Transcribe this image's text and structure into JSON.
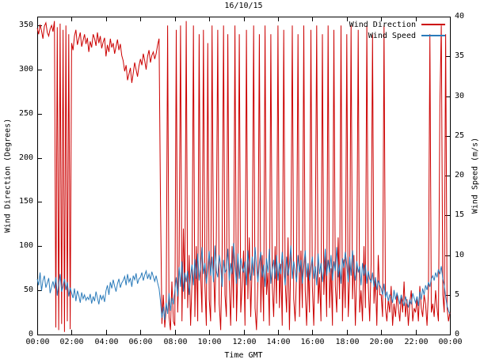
{
  "chart_data": {
    "type": "line",
    "title": "16/10/15",
    "xlabel": "Time GMT",
    "x_range_minutes": [
      0,
      1440
    ],
    "sample_interval_minutes": 5,
    "x_ticks": {
      "minutes": [
        0,
        120,
        240,
        360,
        480,
        600,
        720,
        840,
        960,
        1080,
        1200,
        1320,
        1440
      ],
      "labels": [
        "00:00",
        "02:00",
        "04:00",
        "06:00",
        "08:00",
        "10:00",
        "12:00",
        "14:00",
        "16:00",
        "18:00",
        "20:00",
        "22:00",
        "00:00"
      ]
    },
    "left_axis": {
      "label": "Wind Direction (Degrees)",
      "range": [
        0,
        360
      ],
      "ticks": [
        0,
        50,
        100,
        150,
        200,
        250,
        300,
        350
      ]
    },
    "right_axis": {
      "label": "Wind Speed (m/s)",
      "range": [
        0,
        40
      ],
      "ticks": [
        0,
        5,
        10,
        15,
        20,
        25,
        30,
        35,
        40
      ]
    },
    "grid": false,
    "legend_position": "top-right",
    "series": [
      {
        "name": "Wind Direction",
        "color": "#cc0000",
        "axis": "left",
        "values": [
          347,
          340,
          351,
          344,
          335,
          349,
          353,
          342,
          338,
          346,
          350,
          343,
          355,
          8,
          348,
          5,
          352,
          12,
          345,
          3,
          350,
          15,
          340,
          6,
          330,
          322,
          338,
          345,
          328,
          335,
          342,
          326,
          333,
          340,
          329,
          336,
          320,
          332,
          325,
          340,
          335,
          327,
          342,
          330,
          338,
          324,
          331,
          336,
          315,
          328,
          320,
          335,
          325,
          330,
          318,
          326,
          334,
          322,
          329,
          316,
          310,
          298,
          305,
          288,
          295,
          302,
          285,
          296,
          308,
          300,
          292,
          304,
          312,
          305,
          318,
          310,
          300,
          315,
          322,
          308,
          316,
          320,
          312,
          318,
          328,
          335,
          150,
          12,
          45,
          8,
          30,
          350,
          20,
          5,
          60,
          15,
          10,
          345,
          25,
          80,
          350,
          15,
          120,
          40,
          355,
          30,
          90,
          10,
          60,
          350,
          20,
          100,
          15,
          340,
          70,
          25,
          345,
          55,
          10,
          330,
          40,
          15,
          350,
          80,
          25,
          110,
          345,
          35,
          5,
          90,
          350,
          45,
          20,
          340,
          60,
          10,
          100,
          30,
          350,
          15,
          75,
          340,
          25,
          55,
          95,
          10,
          345,
          40,
          110,
          20,
          80,
          350,
          30,
          5,
          60,
          340,
          25,
          90,
          15,
          350,
          45,
          70,
          10,
          340,
          55,
          20,
          100,
          35,
          350,
          30,
          80,
          10,
          345,
          60,
          25,
          110,
          5,
          90,
          350,
          40,
          15,
          70,
          340,
          20,
          95,
          30,
          350,
          50,
          10,
          80,
          25,
          345,
          55,
          10,
          100,
          350,
          35,
          65,
          15,
          340,
          45,
          90,
          20,
          350,
          30,
          75,
          10,
          345,
          55,
          25,
          110,
          40,
          350,
          15,
          85,
          30,
          340,
          20,
          60,
          350,
          40,
          90,
          10,
          70,
          345,
          25,
          50,
          15,
          100,
          30,
          350,
          55,
          15,
          80,
          340,
          35,
          65,
          10,
          90,
          45,
          45,
          20,
          350,
          30,
          15,
          40,
          25,
          55,
          10,
          35,
          20,
          45,
          30,
          15,
          45,
          25,
          60,
          20,
          40,
          10,
          35,
          50,
          15,
          30,
          25,
          40,
          15,
          55,
          30,
          20,
          45,
          35,
          10,
          50,
          340,
          25,
          35,
          20,
          50,
          30,
          15,
          260,
          350,
          45,
          25,
          340,
          30,
          15,
          25
        ]
      },
      {
        "name": "Wind Speed",
        "color": "#2b7bba",
        "axis": "right",
        "values": [
          7.0,
          6.2,
          7.8,
          5.5,
          6.8,
          7.4,
          5.9,
          6.5,
          7.1,
          5.2,
          6.0,
          6.7,
          5.8,
          7.2,
          4.9,
          6.3,
          7.6,
          5.4,
          6.1,
          7.0,
          5.6,
          6.6,
          4.8,
          5.9,
          5.2,
          4.6,
          5.8,
          4.2,
          5.5,
          4.9,
          4.0,
          5.3,
          4.5,
          5.0,
          4.3,
          4.7,
          4.4,
          5.1,
          3.9,
          4.8,
          4.2,
          5.4,
          4.6,
          3.8,
          5.0,
          4.4,
          4.9,
          4.1,
          5.5,
          6.2,
          5.0,
          6.6,
          5.8,
          6.9,
          6.1,
          5.4,
          6.4,
          7.0,
          5.9,
          6.5,
          6.8,
          7.3,
          6.2,
          7.6,
          6.6,
          7.1,
          6.0,
          7.4,
          6.9,
          7.7,
          6.4,
          7.0,
          7.2,
          7.8,
          6.8,
          7.5,
          8.0,
          7.0,
          7.6,
          6.9,
          7.9,
          7.3,
          6.7,
          7.4,
          6.5,
          5.8,
          4.2,
          2.1,
          3.5,
          1.8,
          4.0,
          2.6,
          5.2,
          3.0,
          4.6,
          3.8,
          5.5,
          7.2,
          4.8,
          8.5,
          6.0,
          9.2,
          5.4,
          7.8,
          6.6,
          8.0,
          5.0,
          7.4,
          8.8,
          6.2,
          9.5,
          7.0,
          10.2,
          6.8,
          8.4,
          11.0,
          7.6,
          9.0,
          6.4,
          8.2,
          10.5,
          7.4,
          9.8,
          6.6,
          11.2,
          8.0,
          7.2,
          10.0,
          8.6,
          6.0,
          9.4,
          7.8,
          8.2,
          10.8,
          6.8,
          9.0,
          7.6,
          11.5,
          8.8,
          6.4,
          10.2,
          7.0,
          9.6,
          8.4,
          7.8,
          9.2,
          6.2,
          10.6,
          8.0,
          6.8,
          9.8,
          7.4,
          11.0,
          8.6,
          6.6,
          9.0,
          10.4,
          7.2,
          8.8,
          6.0,
          9.6,
          7.8,
          10.8,
          6.4,
          8.2,
          9.4,
          7.0,
          10.0,
          6.8,
          9.0,
          7.6,
          10.4,
          8.2,
          6.2,
          9.8,
          7.4,
          8.8,
          11.2,
          7.0,
          9.2,
          8.0,
          6.6,
          10.0,
          7.8,
          9.4,
          6.4,
          8.6,
          10.6,
          7.2,
          9.0,
          6.8,
          8.4,
          9.8,
          7.0,
          8.6,
          6.2,
          10.2,
          7.6,
          9.0,
          6.6,
          8.2,
          10.8,
          7.4,
          9.4,
          7.8,
          10.0,
          6.8,
          9.2,
          8.0,
          11.0,
          7.2,
          8.8,
          6.4,
          9.6,
          8.4,
          10.4,
          8.8,
          6.6,
          9.8,
          7.4,
          10.6,
          8.0,
          6.8,
          9.2,
          7.8,
          8.6,
          6.2,
          9.0,
          7.4,
          8.8,
          6.4,
          8.0,
          7.0,
          6.6,
          7.8,
          6.0,
          7.2,
          5.6,
          6.8,
          6.2,
          5.8,
          5.0,
          6.4,
          4.6,
          5.4,
          4.2,
          5.0,
          4.8,
          4.0,
          5.6,
          4.4,
          5.2,
          4.6,
          3.8,
          5.0,
          4.2,
          3.6,
          4.8,
          4.0,
          3.4,
          4.4,
          3.8,
          5.2,
          4.6,
          4.0,
          4.8,
          3.6,
          5.4,
          4.4,
          5.8,
          5.0,
          6.2,
          5.6,
          6.6,
          6.0,
          7.0,
          7.4,
          6.8,
          7.8,
          7.2,
          8.2,
          7.6,
          8.6,
          7.0,
          6.2,
          4.8,
          3.6,
          3.0,
          2.6
        ]
      }
    ]
  }
}
